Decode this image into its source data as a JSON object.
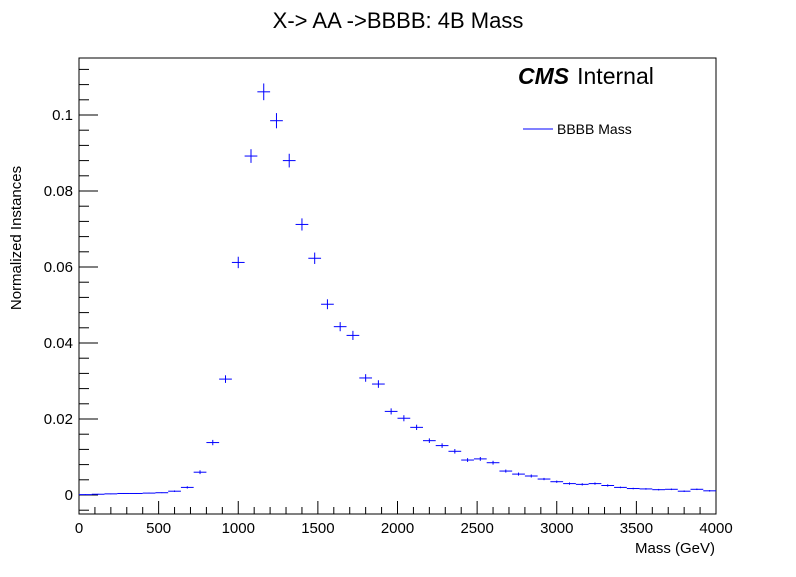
{
  "chart_data": {
    "type": "scatter",
    "title": "X-> AA ->BBBB: 4B Mass",
    "xlabel": "Mass (GeV)",
    "ylabel": "Normalized Instances",
    "xlim": [
      0,
      4000
    ],
    "ylim": [
      -0.005,
      0.115
    ],
    "bin_width": 80,
    "x_ticks": [
      "0",
      "500",
      "1000",
      "1500",
      "2000",
      "2500",
      "3000",
      "3500",
      "4000"
    ],
    "y_ticks": [
      "0",
      "0.02",
      "0.04",
      "0.06",
      "0.08",
      "0.1"
    ],
    "x_tick_values": [
      0,
      500,
      1000,
      1500,
      2000,
      2500,
      3000,
      3500,
      4000
    ],
    "y_tick_values": [
      0,
      0.02,
      0.04,
      0.06,
      0.08,
      0.1
    ],
    "watermark": {
      "bold": "CMS",
      "normal": "Internal"
    },
    "legend_position": "top-right",
    "grid": false,
    "series": [
      {
        "name": "BBBB Mass",
        "color": "#0000ff",
        "x": [
          40,
          120,
          200,
          280,
          360,
          440,
          520,
          600,
          680,
          760,
          840,
          920,
          1000,
          1080,
          1160,
          1240,
          1320,
          1400,
          1480,
          1560,
          1640,
          1720,
          1800,
          1880,
          1960,
          2040,
          2120,
          2200,
          2280,
          2360,
          2440,
          2520,
          2600,
          2680,
          2760,
          2840,
          2920,
          3000,
          3080,
          3160,
          3240,
          3320,
          3400,
          3480,
          3560,
          3640,
          3720,
          3800,
          3880,
          3960
        ],
        "y": [
          0.0001,
          0.0002,
          0.0003,
          0.0004,
          0.0004,
          0.0005,
          0.0006,
          0.001,
          0.002,
          0.006,
          0.0138,
          0.0305,
          0.0612,
          0.0892,
          0.1061,
          0.0985,
          0.088,
          0.0712,
          0.0623,
          0.0502,
          0.0443,
          0.042,
          0.0308,
          0.0292,
          0.022,
          0.0202,
          0.0178,
          0.0143,
          0.013,
          0.0115,
          0.0092,
          0.0095,
          0.0085,
          0.0063,
          0.0055,
          0.005,
          0.0042,
          0.0035,
          0.003,
          0.0028,
          0.003,
          0.0025,
          0.002,
          0.0017,
          0.0016,
          0.0014,
          0.0015,
          0.001,
          0.0015,
          0.0011
        ],
        "yerr": [
          0.0001,
          0.0001,
          0.0001,
          0.0001,
          0.0001,
          0.0001,
          0.0001,
          0.0002,
          0.0003,
          0.0005,
          0.0007,
          0.001,
          0.0015,
          0.0018,
          0.0022,
          0.002,
          0.0018,
          0.0016,
          0.0015,
          0.0013,
          0.0012,
          0.0012,
          0.001,
          0.001,
          0.0008,
          0.0008,
          0.0007,
          0.0006,
          0.0006,
          0.0006,
          0.0005,
          0.0005,
          0.0005,
          0.0004,
          0.0004,
          0.0004,
          0.0003,
          0.0003,
          0.0003,
          0.0003,
          0.0003,
          0.0003,
          0.0002,
          0.0002,
          0.0002,
          0.0002,
          0.0002,
          0.0002,
          0.0002,
          0.0002
        ]
      }
    ]
  }
}
